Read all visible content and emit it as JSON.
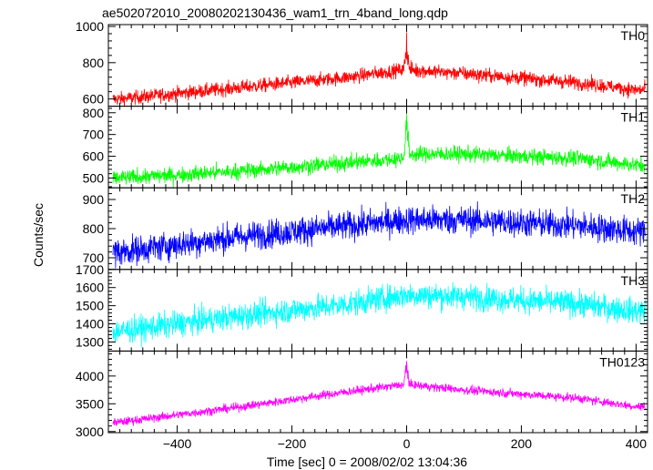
{
  "chart_data": {
    "type": "line",
    "title": "ae502072010_20080202130436_wam1_trn_4band_long.qdp",
    "xlabel": "Time [sec] 0 = 2008/02/02 13:04:36",
    "ylabel": "Counts/sec",
    "xlim": [
      -520,
      420
    ],
    "xticks": [
      -400,
      -200,
      0,
      200,
      400
    ],
    "panels": [
      {
        "name": "TH0",
        "color": "#ff0000",
        "ylim": [
          560,
          1010
        ],
        "yticks": [
          600,
          800,
          1000
        ],
        "baseline": [
          [
            -500,
            600
          ],
          [
            -300,
            660
          ],
          [
            -100,
            720
          ],
          [
            -10,
            760
          ],
          [
            10,
            760
          ],
          [
            100,
            740
          ],
          [
            300,
            690
          ],
          [
            400,
            650
          ]
        ],
        "noise": 30,
        "spike": 170
      },
      {
        "name": "TH1",
        "color": "#00ff00",
        "ylim": [
          455,
          830
        ],
        "yticks": [
          500,
          600,
          700,
          800
        ],
        "baseline": [
          [
            -500,
            500
          ],
          [
            -300,
            530
          ],
          [
            -100,
            570
          ],
          [
            -10,
            590
          ],
          [
            10,
            610
          ],
          [
            100,
            610
          ],
          [
            300,
            590
          ],
          [
            400,
            560
          ]
        ],
        "noise": 28,
        "spike": 200
      },
      {
        "name": "TH2",
        "color": "#0000ff",
        "ylim": [
          660,
          940
        ],
        "yticks": [
          700,
          800,
          900
        ],
        "baseline": [
          [
            -500,
            720
          ],
          [
            -300,
            770
          ],
          [
            -100,
            810
          ],
          [
            0,
            830
          ],
          [
            100,
            830
          ],
          [
            300,
            810
          ],
          [
            400,
            790
          ]
        ],
        "noise": 38,
        "spike": 0
      },
      {
        "name": "TH3",
        "color": "#00ffff",
        "ylim": [
          1250,
          1700
        ],
        "yticks": [
          1300,
          1400,
          1500,
          1600,
          1700
        ],
        "baseline": [
          [
            -500,
            1360
          ],
          [
            -300,
            1440
          ],
          [
            -100,
            1510
          ],
          [
            0,
            1560
          ],
          [
            100,
            1550
          ],
          [
            300,
            1510
          ],
          [
            400,
            1470
          ]
        ],
        "noise": 55,
        "spike": 0
      },
      {
        "name": "TH0123",
        "color": "#ff00ff",
        "ylim": [
          2980,
          4450
        ],
        "yticks": [
          3000,
          3500,
          4000
        ],
        "baseline": [
          [
            -500,
            3170
          ],
          [
            -300,
            3430
          ],
          [
            -100,
            3720
          ],
          [
            -10,
            3840
          ],
          [
            10,
            3840
          ],
          [
            100,
            3750
          ],
          [
            300,
            3600
          ],
          [
            400,
            3450
          ]
        ],
        "noise": 60,
        "spike": 450
      }
    ]
  }
}
